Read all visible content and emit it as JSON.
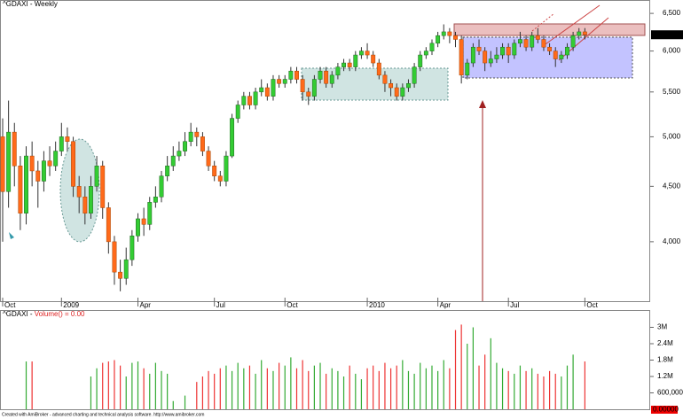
{
  "chart_data": {
    "type": "candlestick",
    "title": "^GDAXI - Weekly",
    "log_scale": true,
    "ylim": [
      3525,
      6625
    ],
    "yticks": [
      {
        "value": 4000,
        "label": "4,000"
      },
      {
        "value": 4500,
        "label": "4,500"
      },
      {
        "value": 5000,
        "label": "5,000"
      },
      {
        "value": 5500,
        "label": "5,500"
      },
      {
        "value": 6000,
        "label": "6,000"
      },
      {
        "value": 6500,
        "label": "6,500"
      }
    ],
    "categories": [
      "Oct",
      null,
      null,
      null,
      null,
      null,
      null,
      null,
      null,
      null,
      "2009",
      null,
      null,
      null,
      null,
      null,
      null,
      null,
      null,
      null,
      null,
      null,
      null,
      "Apr",
      null,
      null,
      null,
      null,
      null,
      null,
      null,
      null,
      null,
      null,
      null,
      null,
      "Jul",
      null,
      null,
      null,
      null,
      null,
      null,
      null,
      null,
      null,
      null,
      null,
      "Oct",
      null,
      null,
      null,
      null,
      null,
      null,
      null,
      null,
      null,
      null,
      null,
      null,
      null,
      "2010",
      null,
      null,
      null,
      null,
      null,
      null,
      null,
      null,
      null,
      null,
      null,
      "Apr",
      null,
      null,
      null,
      null,
      null,
      null,
      null,
      null,
      null,
      null,
      null,
      "Jul",
      null,
      null,
      null,
      null,
      null,
      null,
      null,
      null,
      null,
      null,
      null,
      null,
      "Oct"
    ],
    "series": [
      {
        "name": "^GDAXI",
        "up_color": "#33cc33",
        "down_color": "#ff6a1a",
        "open": [
          5000,
          4450,
          5050,
          4700,
          4250,
          4800,
          4650,
          4550,
          4750,
          4700,
          4850,
          5000,
          4950,
          4500,
          4400,
          4250,
          4500,
          4700,
          4300,
          4000,
          3750,
          3700,
          3850,
          4050,
          4200,
          4150,
          4350,
          4400,
          4600,
          4700,
          4800,
          4850,
          4950,
          5050,
          5000,
          4850,
          4700,
          4600,
          4550,
          4800,
          5200,
          5350,
          5450,
          5350,
          5500,
          5550,
          5450,
          5650,
          5600,
          5650,
          5750,
          5650,
          5500,
          5450,
          5650,
          5750,
          5600,
          5700,
          5800,
          5850,
          5800,
          5950,
          6000,
          5950,
          5850,
          5700,
          5600,
          5550,
          5450,
          5550,
          5600,
          5800,
          5950,
          6000,
          6100,
          6200,
          6250,
          6200,
          6150,
          5700,
          5850,
          6050,
          6000,
          5850,
          5900,
          5950,
          6050,
          5950,
          6100,
          6150,
          6050,
          6200,
          6150,
          6050,
          6000,
          5900,
          5950,
          6050,
          6200,
          6250
        ],
        "high": [
          5200,
          5400,
          5150,
          4800,
          4900,
          4950,
          4750,
          4850,
          4900,
          4950,
          5150,
          5100,
          5000,
          4600,
          4500,
          4600,
          4800,
          4750,
          4350,
          4050,
          3850,
          3950,
          4100,
          4250,
          4300,
          4400,
          4500,
          4650,
          4800,
          4900,
          4950,
          5050,
          5150,
          5100,
          5050,
          4900,
          4750,
          4650,
          4850,
          5250,
          5400,
          5500,
          5500,
          5550,
          5650,
          5600,
          5700,
          5700,
          5700,
          5800,
          5800,
          5700,
          5550,
          5700,
          5800,
          5800,
          5750,
          5850,
          5900,
          5900,
          6000,
          6050,
          6100,
          6000,
          5900,
          5750,
          5650,
          5600,
          5600,
          5650,
          5850,
          6000,
          6050,
          6150,
          6250,
          6350,
          6300,
          6250,
          6200,
          5900,
          6100,
          6150,
          6050,
          6000,
          6050,
          6100,
          6100,
          6150,
          6250,
          6200,
          6250,
          6300,
          6200,
          6100,
          6050,
          6000,
          6100,
          6250,
          6300,
          6300
        ],
        "low": [
          4000,
          4300,
          4500,
          4100,
          4150,
          4500,
          4300,
          4450,
          4600,
          4650,
          4800,
          4850,
          4400,
          4250,
          4150,
          4200,
          4450,
          4200,
          3900,
          3650,
          3600,
          3650,
          3800,
          4000,
          4050,
          4100,
          4300,
          4350,
          4550,
          4650,
          4750,
          4800,
          4900,
          4900,
          4800,
          4650,
          4550,
          4500,
          4500,
          4780,
          5150,
          5300,
          5300,
          5300,
          5450,
          5400,
          5400,
          5550,
          5550,
          5600,
          5600,
          5400,
          5350,
          5400,
          5600,
          5550,
          5550,
          5650,
          5750,
          5750,
          5750,
          5900,
          5900,
          5800,
          5650,
          5500,
          5450,
          5400,
          5400,
          5500,
          5550,
          5750,
          5900,
          5950,
          6050,
          6150,
          6100,
          6050,
          5600,
          5650,
          5800,
          5950,
          5750,
          5800,
          5850,
          5900,
          5850,
          5900,
          6050,
          6000,
          6000,
          6100,
          6000,
          5950,
          5800,
          5850,
          5900,
          6000,
          6150,
          6150
        ],
        "close": [
          4450,
          5050,
          4700,
          4250,
          4800,
          4650,
          4550,
          4750,
          4700,
          4850,
          5000,
          4950,
          4500,
          4400,
          4250,
          4500,
          4700,
          4300,
          4000,
          3750,
          3700,
          3850,
          4050,
          4200,
          4150,
          4350,
          4400,
          4600,
          4700,
          4800,
          4850,
          4950,
          5050,
          5000,
          4850,
          4700,
          4600,
          4550,
          4800,
          5200,
          5350,
          5450,
          5350,
          5500,
          5550,
          5450,
          5650,
          5600,
          5650,
          5750,
          5650,
          5500,
          5450,
          5650,
          5750,
          5600,
          5700,
          5800,
          5850,
          5800,
          5950,
          6000,
          5950,
          5850,
          5700,
          5600,
          5550,
          5450,
          5550,
          5600,
          5800,
          5950,
          6000,
          6100,
          6200,
          6250,
          6200,
          6150,
          5700,
          5850,
          6050,
          6000,
          5850,
          5900,
          5950,
          6050,
          5950,
          6100,
          6150,
          6050,
          6200,
          6150,
          6050,
          6000,
          5900,
          5950,
          6050,
          6200,
          6250,
          6211.34
        ],
        "last_value_label": "6,211.34"
      }
    ],
    "volume": {
      "title_prefix": "^GDAXI - ",
      "title_main": "Volume() = 0.00",
      "up_color": "#33aa33",
      "down_color": "#ee3333",
      "ylim": [
        0,
        3600000
      ],
      "yticks": [
        {
          "value": 600000,
          "label": "600,000"
        },
        {
          "value": 1200000,
          "label": "1.2M"
        },
        {
          "value": 1800000,
          "label": "1.8M"
        },
        {
          "value": 2400000,
          "label": "2.4M"
        },
        {
          "value": 3000000,
          "label": "3M"
        }
      ],
      "values": [
        null,
        null,
        null,
        null,
        1750000,
        1750000,
        null,
        null,
        null,
        null,
        null,
        null,
        null,
        null,
        null,
        1200000,
        1500000,
        1700000,
        1750000,
        1800000,
        1600000,
        1200000,
        1700000,
        1750000,
        1500000,
        1300000,
        1700000,
        1400000,
        1300000,
        300000,
        null,
        500000,
        null,
        1000000,
        1200000,
        1400000,
        1300000,
        1500000,
        1600000,
        1400000,
        1700000,
        1500000,
        1600000,
        1300000,
        1800000,
        1500000,
        1400000,
        1700000,
        1600000,
        1900000,
        1500000,
        1800000,
        1400000,
        1600000,
        1700000,
        1300000,
        1500000,
        1400000,
        1200000,
        1600000,
        1300000,
        1100000,
        1500000,
        1600000,
        1400000,
        1700000,
        1500000,
        1600000,
        1800000,
        1400000,
        1300000,
        1700000,
        1500000,
        1600000,
        1400000,
        1800000,
        1500000,
        2900000,
        3100000,
        2400000,
        3000000,
        1600000,
        2000000,
        2600000,
        1700000,
        1500000,
        1400000,
        1300000,
        1600000,
        1400000,
        1500000,
        1300000,
        1200000,
        1400000,
        1300000,
        1200000,
        1600000,
        2000000,
        null,
        1750000
      ],
      "last_label": "0.00000"
    },
    "footer": "Created with AmiBroker - advanced charting and technical analysis software. http://www.amibroker.com"
  }
}
